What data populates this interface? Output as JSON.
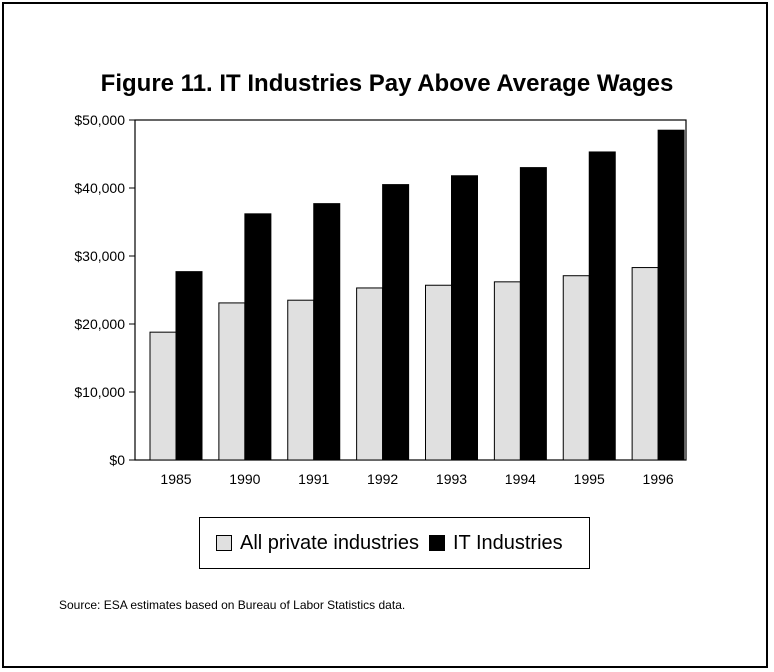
{
  "chart_data": {
    "type": "bar",
    "title": "Figure 11.  IT Industries Pay Above Average Wages",
    "categories": [
      "1985",
      "1990",
      "1991",
      "1992",
      "1993",
      "1994",
      "1995",
      "1996"
    ],
    "series": [
      {
        "name": "All private industries",
        "color": "#e0e0e0",
        "values": [
          18800,
          23100,
          23500,
          25300,
          25700,
          26200,
          27100,
          28300
        ]
      },
      {
        "name": "IT Industries",
        "color": "#000000",
        "values": [
          27700,
          36200,
          37700,
          40500,
          41800,
          43000,
          45300,
          48500
        ]
      }
    ],
    "ylim": [
      0,
      50000
    ],
    "y_ticks": [
      "$0",
      "$10,000",
      "$20,000",
      "$30,000",
      "$40,000",
      "$50,000"
    ],
    "xlabel": "",
    "ylabel": "",
    "legend_position": "bottom",
    "grid": false
  },
  "source_note": "Source:  ESA estimates based on Bureau of Labor Statistics data."
}
